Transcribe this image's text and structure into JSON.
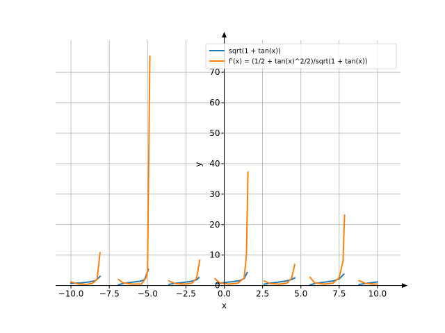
{
  "chart_data": {
    "type": "line",
    "xlabel": "x",
    "ylabel": "y",
    "xlim": [
      -11.0,
      11.5
    ],
    "ylim": [
      -1.0,
      80.5
    ],
    "grid": true,
    "legend_position": "top-right",
    "x_ticks": [
      -10.0,
      -7.5,
      -5.0,
      -2.5,
      0.0,
      2.5,
      5.0,
      7.5,
      10.0
    ],
    "x_tick_labels": [
      "−10.0",
      "−7.5",
      "−5.0",
      "−2.5",
      "0.0",
      "2.5",
      "5.0",
      "7.5",
      "10.0"
    ],
    "y_ticks": [
      0,
      10,
      20,
      30,
      40,
      50,
      60,
      70
    ],
    "y_tick_labels": [
      "0",
      "10",
      "20",
      "30",
      "40",
      "50",
      "60",
      "70"
    ],
    "series": [
      {
        "name": "sqrt(1 + tan(x))",
        "color": "#1f77b4",
        "segments": [
          [
            [
              -10.0,
              0.75
            ],
            [
              -9.4,
              0.85
            ],
            [
              -8.8,
              1.2
            ],
            [
              -8.4,
              1.6
            ],
            [
              -8.1,
              3.0
            ]
          ],
          [
            [
              -6.9,
              0.25
            ],
            [
              -6.5,
              0.8
            ],
            [
              -6.0,
              1.1
            ],
            [
              -5.5,
              1.4
            ],
            [
              -5.2,
              1.9
            ],
            [
              -4.95,
              5.3
            ]
          ],
          [
            [
              -3.6,
              0.4
            ],
            [
              -3.2,
              0.75
            ],
            [
              -2.7,
              1.0
            ],
            [
              -2.2,
              1.35
            ],
            [
              -1.8,
              1.9
            ],
            [
              -1.65,
              2.6
            ]
          ],
          [
            [
              -0.5,
              0.6
            ],
            [
              0.0,
              1.0
            ],
            [
              0.5,
              1.25
            ],
            [
              1.0,
              1.6
            ],
            [
              1.3,
              2.3
            ],
            [
              1.5,
              4.3
            ]
          ],
          [
            [
              2.6,
              0.45
            ],
            [
              3.0,
              0.8
            ],
            [
              3.5,
              1.1
            ],
            [
              4.0,
              1.45
            ],
            [
              4.4,
              2.0
            ],
            [
              4.6,
              2.5
            ]
          ],
          [
            [
              5.6,
              0.2
            ],
            [
              6.0,
              0.8
            ],
            [
              6.6,
              1.15
            ],
            [
              7.1,
              1.5
            ],
            [
              7.5,
              2.2
            ],
            [
              7.8,
              3.7
            ]
          ],
          [
            [
              8.8,
              0.35
            ],
            [
              9.3,
              0.75
            ],
            [
              9.7,
              1.0
            ],
            [
              10.0,
              1.2
            ]
          ]
        ]
      },
      {
        "name": "f'(x) = (1/2 + tan(x)^2/2)/sqrt(1 + tan(x))",
        "color": "#ff7f0e",
        "segments": [
          [
            [
              -10.0,
              1.2
            ],
            [
              -9.5,
              0.5
            ],
            [
              -9.0,
              0.4
            ],
            [
              -8.6,
              0.7
            ],
            [
              -8.3,
              2.0
            ],
            [
              -8.1,
              10.8
            ]
          ],
          [
            [
              -6.9,
              2.0
            ],
            [
              -6.6,
              0.9
            ],
            [
              -6.0,
              0.45
            ],
            [
              -5.4,
              0.5
            ],
            [
              -5.1,
              2.5
            ],
            [
              -5.0,
              5.0
            ],
            [
              -4.95,
              30.0
            ],
            [
              -4.85,
              75.3
            ]
          ],
          [
            [
              -3.6,
              1.5
            ],
            [
              -3.2,
              0.65
            ],
            [
              -2.6,
              0.45
            ],
            [
              -2.1,
              0.8
            ],
            [
              -1.8,
              2.5
            ],
            [
              -1.6,
              8.3
            ]
          ],
          [
            [
              -0.6,
              2.2
            ],
            [
              -0.3,
              0.9
            ],
            [
              0.3,
              0.45
            ],
            [
              0.9,
              0.8
            ],
            [
              1.3,
              2.5
            ],
            [
              1.45,
              10.0
            ],
            [
              1.55,
              37.2
            ]
          ],
          [
            [
              2.6,
              1.5
            ],
            [
              3.0,
              0.65
            ],
            [
              3.6,
              0.45
            ],
            [
              4.1,
              0.8
            ],
            [
              4.4,
              2.5
            ],
            [
              4.6,
              6.9
            ]
          ],
          [
            [
              5.6,
              2.7
            ],
            [
              5.9,
              0.9
            ],
            [
              6.5,
              0.45
            ],
            [
              7.1,
              0.8
            ],
            [
              7.5,
              2.6
            ],
            [
              7.75,
              8.0
            ],
            [
              7.85,
              23.1
            ]
          ],
          [
            [
              8.8,
              1.6
            ],
            [
              9.2,
              0.75
            ],
            [
              9.7,
              0.45
            ],
            [
              10.0,
              0.5
            ]
          ]
        ]
      }
    ]
  }
}
